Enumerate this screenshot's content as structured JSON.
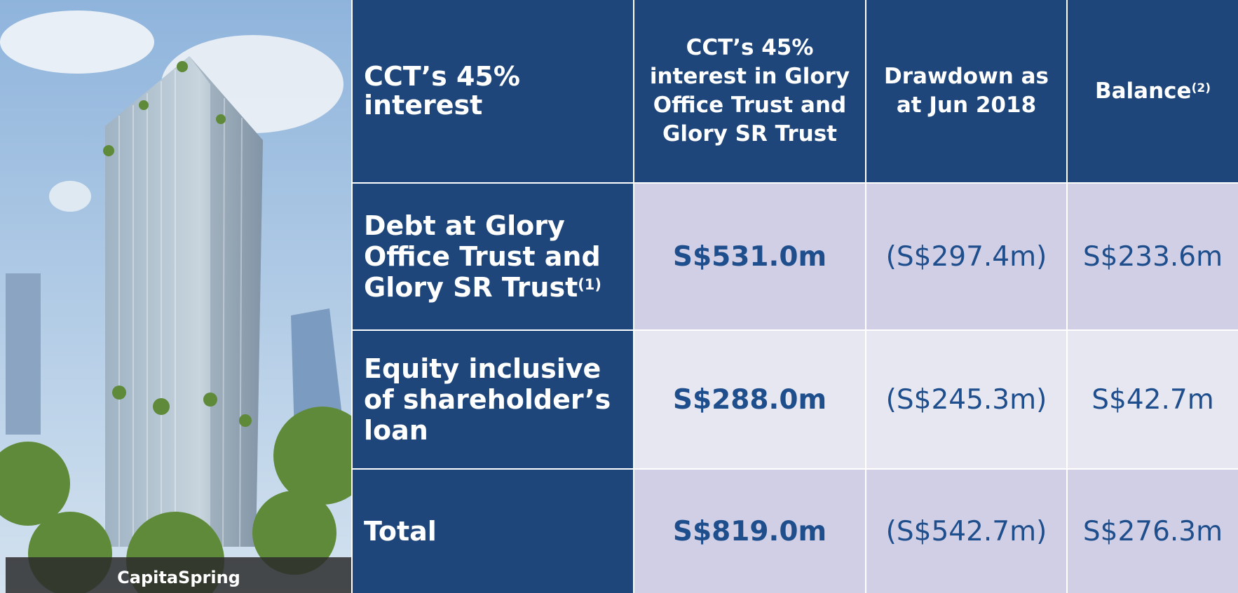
{
  "image": {
    "caption": "CapitaSpring"
  },
  "table": {
    "header": [
      {
        "text": "CCT’s 45% interest"
      },
      {
        "text": "CCT’s 45% interest in Glory Office Trust and Glory SR Trust"
      },
      {
        "text": "Drawdown as at Jun 2018"
      },
      {
        "text": "Balance",
        "note": "(2)"
      }
    ],
    "rows": [
      {
        "label": "Debt at Glory Office Trust and Glory SR Trust",
        "note": "(1)",
        "cells": [
          "S$531.0m",
          "(S$297.4m)",
          "S$233.6m"
        ]
      },
      {
        "label": "Equity inclusive of shareholder’s loan",
        "cells": [
          "S$288.0m",
          "(S$245.3m)",
          "S$42.7m"
        ]
      },
      {
        "label": "Total",
        "cells": [
          "S$819.0m",
          "(S$542.7m)",
          "S$276.3m"
        ]
      }
    ]
  }
}
